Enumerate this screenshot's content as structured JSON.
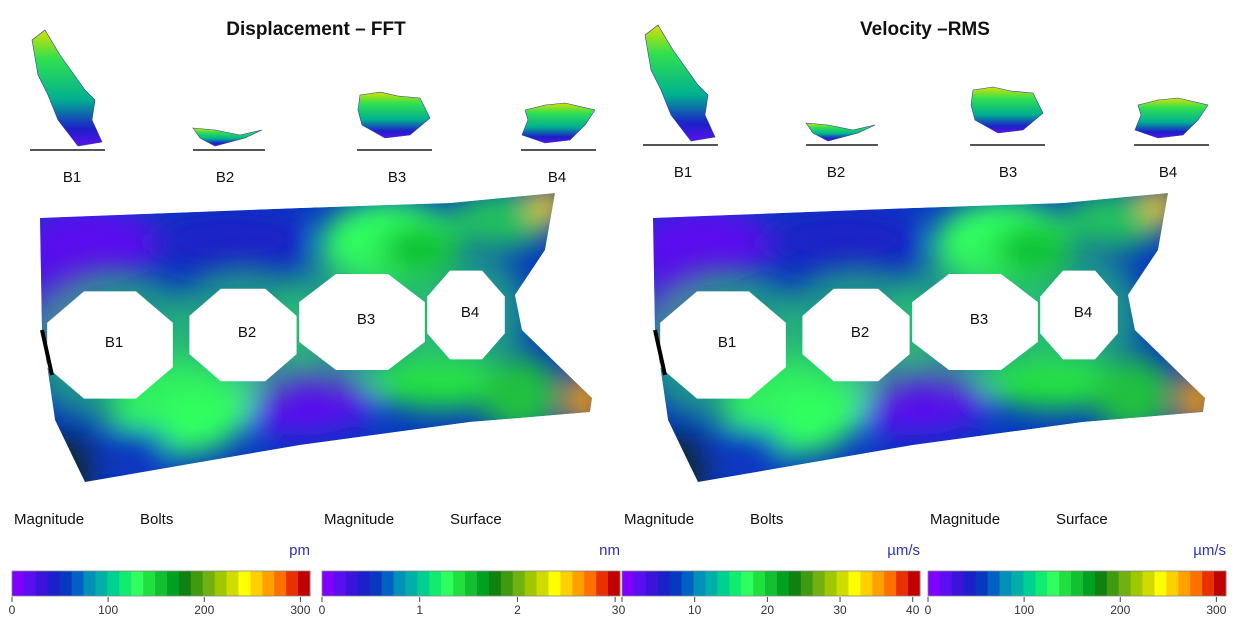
{
  "panels": [
    {
      "title": "Displacement – FFT",
      "bolt_labels": [
        "B1",
        "B2",
        "B3",
        "B4"
      ],
      "hole_labels": [
        "B1",
        "B2",
        "B3",
        "B4"
      ],
      "legends": [
        {
          "label": "Magnitude",
          "part": "Bolts",
          "unit": "pm",
          "lim": [
            0,
            310
          ],
          "ticks": [
            0,
            100,
            200,
            300
          ]
        },
        {
          "label": "Magnitude",
          "part": "Surface",
          "unit": "nm",
          "lim": [
            0,
            3.05
          ],
          "ticks": [
            0,
            1,
            2,
            3
          ]
        }
      ]
    },
    {
      "title": "Velocity –RMS",
      "bolt_labels": [
        "B1",
        "B2",
        "B3",
        "B4"
      ],
      "hole_labels": [
        "B1",
        "B2",
        "B3",
        "B4"
      ],
      "legends": [
        {
          "label": "Magnitude",
          "part": "Bolts",
          "unit": "µm/s",
          "lim": [
            0,
            41
          ],
          "ticks": [
            0,
            10,
            20,
            30,
            40
          ]
        },
        {
          "label": "Magnitude",
          "part": "Surface",
          "unit": "µm/s",
          "lim": [
            0,
            310
          ],
          "ticks": [
            0,
            100,
            200,
            300
          ]
        }
      ]
    }
  ],
  "colormap": [
    "#8000ff",
    "#5a10ee",
    "#3a14d8",
    "#1c20c8",
    "#0838c0",
    "#0060c4",
    "#0090b8",
    "#00b0a8",
    "#00d090",
    "#10ec70",
    "#30ff60",
    "#20e040",
    "#10c030",
    "#00a020",
    "#108010",
    "#409a10",
    "#70b010",
    "#a0c800",
    "#d0dc00",
    "#ffff00",
    "#ffd000",
    "#ffa000",
    "#ff7000",
    "#e83000",
    "#c00000"
  ]
}
